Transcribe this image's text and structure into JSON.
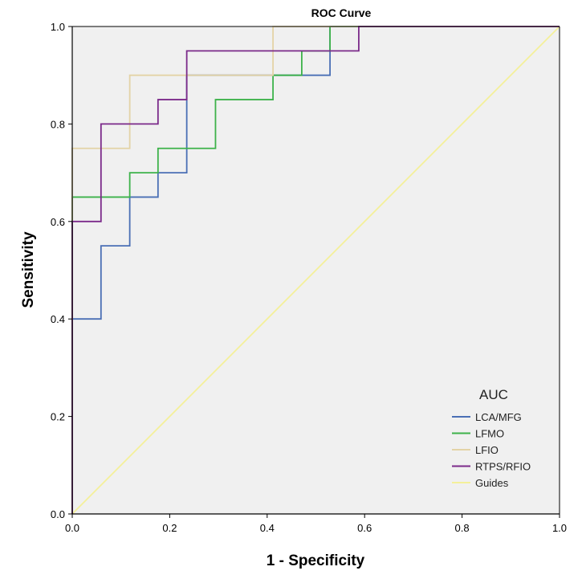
{
  "chart_data": {
    "type": "line",
    "title": "ROC Curve",
    "xlabel": "1 - Specificity",
    "ylabel": "Sensitivity",
    "xlim": [
      0,
      1
    ],
    "ylim": [
      0,
      1
    ],
    "xticks": [
      "0.0",
      "0.2",
      "0.4",
      "0.6",
      "0.8",
      "1.0"
    ],
    "yticks": [
      "0.0",
      "0.2",
      "0.4",
      "0.6",
      "0.8",
      "1.0"
    ],
    "grid": false,
    "legend": {
      "title": "AUC",
      "position": "bottom-right"
    },
    "series": [
      {
        "name": "LCA/MFG",
        "color": "#4a6fb5",
        "x": [
          0,
          0,
          0.059,
          0.059,
          0.118,
          0.118,
          0.176,
          0.176,
          0.235,
          0.235,
          0.412,
          0.412,
          0.529,
          0.529,
          1
        ],
        "y": [
          0,
          0.4,
          0.4,
          0.55,
          0.55,
          0.65,
          0.65,
          0.7,
          0.7,
          0.9,
          0.9,
          0.9,
          0.9,
          1.0,
          1.0
        ]
      },
      {
        "name": "LFMO",
        "color": "#3db24a",
        "x": [
          0,
          0,
          0.118,
          0.118,
          0.176,
          0.176,
          0.294,
          0.294,
          0.412,
          0.412,
          0.471,
          0.471,
          0.529,
          0.529,
          1
        ],
        "y": [
          0,
          0.65,
          0.65,
          0.7,
          0.7,
          0.75,
          0.75,
          0.85,
          0.85,
          0.9,
          0.9,
          0.95,
          0.95,
          1.0,
          1.0
        ]
      },
      {
        "name": "LFIO",
        "color": "#e3d3a6",
        "x": [
          0,
          0,
          0.118,
          0.118,
          0.412,
          0.412,
          1
        ],
        "y": [
          0,
          0.75,
          0.75,
          0.9,
          0.9,
          1.0,
          1.0
        ]
      },
      {
        "name": "RTPS/RFIO",
        "color": "#7b2a8a",
        "x": [
          0,
          0,
          0.059,
          0.059,
          0.176,
          0.176,
          0.235,
          0.235,
          0.588,
          0.588,
          1
        ],
        "y": [
          0,
          0.6,
          0.6,
          0.8,
          0.8,
          0.85,
          0.85,
          0.95,
          0.95,
          1.0,
          1.0
        ]
      },
      {
        "name": "Guides",
        "color": "#f4f09a",
        "x": [
          0,
          1
        ],
        "y": [
          0,
          1
        ]
      }
    ]
  },
  "colors": {
    "plot_background": "#f0f0f0",
    "axis": "#000000"
  }
}
